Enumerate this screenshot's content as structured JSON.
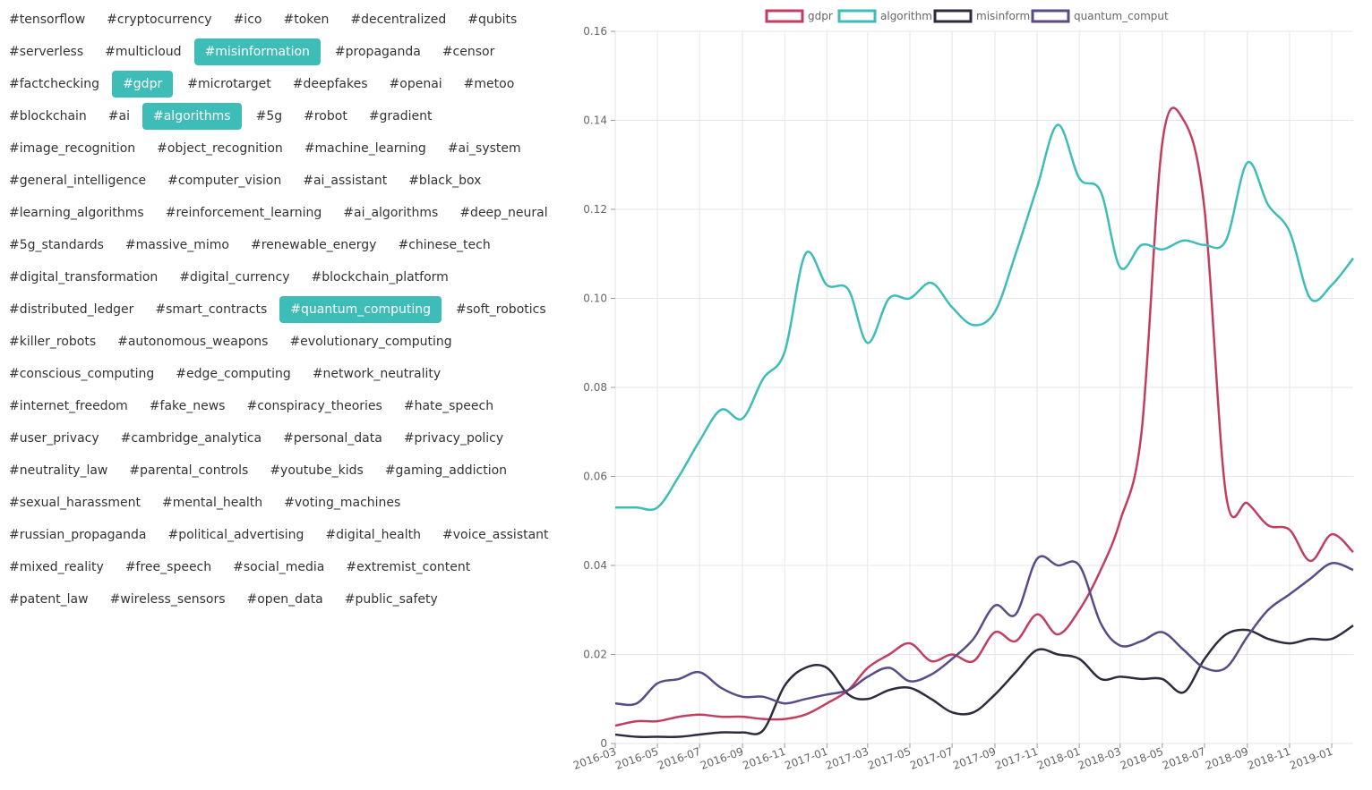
{
  "tags": [
    {
      "label": "#tensorflow",
      "active": false
    },
    {
      "label": "#cryptocurrency",
      "active": false
    },
    {
      "label": "#ico",
      "active": false
    },
    {
      "label": "#token",
      "active": false
    },
    {
      "label": "#decentralized",
      "active": false
    },
    {
      "label": "#qubits",
      "active": false
    },
    {
      "label": "#serverless",
      "active": false
    },
    {
      "label": "#multicloud",
      "active": false
    },
    {
      "label": "#misinformation",
      "active": true
    },
    {
      "label": "#propaganda",
      "active": false
    },
    {
      "label": "#censor",
      "active": false
    },
    {
      "label": "#factchecking",
      "active": false
    },
    {
      "label": "#gdpr",
      "active": true
    },
    {
      "label": "#microtarget",
      "active": false
    },
    {
      "label": "#deepfakes",
      "active": false
    },
    {
      "label": "#openai",
      "active": false
    },
    {
      "label": "#metoo",
      "active": false
    },
    {
      "label": "#blockchain",
      "active": false
    },
    {
      "label": "#ai",
      "active": false
    },
    {
      "label": "#algorithms",
      "active": true
    },
    {
      "label": "#5g",
      "active": false
    },
    {
      "label": "#robot",
      "active": false
    },
    {
      "label": "#gradient",
      "active": false
    },
    {
      "label": "#image_recognition",
      "active": false
    },
    {
      "label": "#object_recognition",
      "active": false
    },
    {
      "label": "#machine_learning",
      "active": false
    },
    {
      "label": "#ai_system",
      "active": false
    },
    {
      "label": "#general_intelligence",
      "active": false
    },
    {
      "label": "#computer_vision",
      "active": false
    },
    {
      "label": "#ai_assistant",
      "active": false
    },
    {
      "label": "#black_box",
      "active": false
    },
    {
      "label": "#learning_algorithms",
      "active": false
    },
    {
      "label": "#reinforcement_learning",
      "active": false
    },
    {
      "label": "#ai_algorithms",
      "active": false
    },
    {
      "label": "#deep_neural",
      "active": false
    },
    {
      "label": "#5g_standards",
      "active": false
    },
    {
      "label": "#massive_mimo",
      "active": false
    },
    {
      "label": "#renewable_energy",
      "active": false
    },
    {
      "label": "#chinese_tech",
      "active": false
    },
    {
      "label": "#digital_transformation",
      "active": false
    },
    {
      "label": "#digital_currency",
      "active": false
    },
    {
      "label": "#blockchain_platform",
      "active": false
    },
    {
      "label": "#distributed_ledger",
      "active": false
    },
    {
      "label": "#smart_contracts",
      "active": false
    },
    {
      "label": "#quantum_computing",
      "active": true
    },
    {
      "label": "#soft_robotics",
      "active": false
    },
    {
      "label": "#killer_robots",
      "active": false
    },
    {
      "label": "#autonomous_weapons",
      "active": false
    },
    {
      "label": "#evolutionary_computing",
      "active": false
    },
    {
      "label": "#conscious_computing",
      "active": false
    },
    {
      "label": "#edge_computing",
      "active": false
    },
    {
      "label": "#network_neutrality",
      "active": false
    },
    {
      "label": "#internet_freedom",
      "active": false
    },
    {
      "label": "#fake_news",
      "active": false
    },
    {
      "label": "#conspiracy_theories",
      "active": false
    },
    {
      "label": "#hate_speech",
      "active": false
    },
    {
      "label": "#user_privacy",
      "active": false
    },
    {
      "label": "#cambridge_analytica",
      "active": false
    },
    {
      "label": "#personal_data",
      "active": false
    },
    {
      "label": "#privacy_policy",
      "active": false
    },
    {
      "label": "#neutrality_law",
      "active": false
    },
    {
      "label": "#parental_controls",
      "active": false
    },
    {
      "label": "#youtube_kids",
      "active": false
    },
    {
      "label": "#gaming_addiction",
      "active": false
    },
    {
      "label": "#sexual_harassment",
      "active": false
    },
    {
      "label": "#mental_health",
      "active": false
    },
    {
      "label": "#voting_machines",
      "active": false
    },
    {
      "label": "#russian_propaganda",
      "active": false
    },
    {
      "label": "#political_advertising",
      "active": false
    },
    {
      "label": "#digital_health",
      "active": false
    },
    {
      "label": "#voice_assistant",
      "active": false
    },
    {
      "label": "#mixed_reality",
      "active": false
    },
    {
      "label": "#free_speech",
      "active": false
    },
    {
      "label": "#social_media",
      "active": false
    },
    {
      "label": "#extremist_content",
      "active": false
    },
    {
      "label": "#patent_law",
      "active": false
    },
    {
      "label": "#wireless_sensors",
      "active": false
    },
    {
      "label": "#open_data",
      "active": false
    },
    {
      "label": "#public_safety",
      "active": false
    }
  ],
  "colors": {
    "active_tag_bg": "#3ebdb8",
    "grid": "#e6e6e6",
    "axis_text": "#666666"
  },
  "chart_data": {
    "type": "line",
    "title": "",
    "xlabel": "",
    "ylabel": "",
    "legend_position": "top",
    "grid": true,
    "ylim": [
      0,
      0.16
    ],
    "y_ticks": [
      "0",
      "0.02",
      "0.04",
      "0.06",
      "0.08",
      "0.10",
      "0.12",
      "0.14",
      "0.16"
    ],
    "x_range": [
      "2016-03",
      "2019-02"
    ],
    "x_ticks": [
      "2016-03",
      "2016-05",
      "2016-07",
      "2016-09",
      "2016-11",
      "2017-01",
      "2017-03",
      "2017-05",
      "2017-07",
      "2017-09",
      "2017-11",
      "2018-01",
      "2018-03",
      "2018-05",
      "2018-07",
      "2018-09",
      "2018-11",
      "2019-01"
    ],
    "x": [
      "2016-03-01",
      "2016-04-01",
      "2016-05-01",
      "2016-06-01",
      "2016-07-01",
      "2016-08-01",
      "2016-09-01",
      "2016-10-01",
      "2016-11-01",
      "2016-12-01",
      "2017-01-01",
      "2017-02-01",
      "2017-03-01",
      "2017-04-01",
      "2017-05-01",
      "2017-06-01",
      "2017-07-01",
      "2017-08-01",
      "2017-09-01",
      "2017-10-01",
      "2017-11-01",
      "2017-12-01",
      "2018-01-01",
      "2018-02-01",
      "2018-03-01",
      "2018-04-01",
      "2018-05-01",
      "2018-06-01",
      "2018-07-01",
      "2018-08-01",
      "2018-09-01",
      "2018-10-01",
      "2018-11-01",
      "2018-12-01",
      "2019-01-01",
      "2019-02-01"
    ],
    "series": [
      {
        "name": "gdpr",
        "color": "#c23e61",
        "values": [
          0.004,
          0.005,
          0.005,
          0.006,
          0.0065,
          0.006,
          0.006,
          0.0055,
          0.0055,
          0.0065,
          0.009,
          0.012,
          0.017,
          0.02,
          0.0225,
          0.0185,
          0.02,
          0.0185,
          0.025,
          0.023,
          0.029,
          0.0245,
          0.03,
          0.039,
          0.05,
          0.07,
          0.135,
          0.14,
          0.12,
          0.056,
          0.054,
          0.049,
          0.048,
          0.041,
          0.047,
          0.043
        ]
      },
      {
        "name": "algorithm",
        "color": "#3ebdb8",
        "values": [
          0.053,
          0.053,
          0.053,
          0.06,
          0.068,
          0.075,
          0.073,
          0.082,
          0.088,
          0.11,
          0.103,
          0.102,
          0.09,
          0.1,
          0.1,
          0.1035,
          0.098,
          0.094,
          0.097,
          0.11,
          0.125,
          0.139,
          0.127,
          0.124,
          0.107,
          0.112,
          0.111,
          0.113,
          0.112,
          0.113,
          0.1305,
          0.121,
          0.115,
          0.1,
          0.103,
          0.109
        ]
      },
      {
        "name": "misinform",
        "color": "#2e2b3e",
        "values": [
          0.002,
          0.0015,
          0.0015,
          0.0015,
          0.002,
          0.0025,
          0.0025,
          0.003,
          0.013,
          0.017,
          0.017,
          0.011,
          0.01,
          0.012,
          0.0125,
          0.01,
          0.007,
          0.007,
          0.011,
          0.016,
          0.021,
          0.02,
          0.019,
          0.0145,
          0.015,
          0.0145,
          0.0145,
          0.0115,
          0.019,
          0.0245,
          0.0255,
          0.0235,
          0.0225,
          0.0235,
          0.0235,
          0.0265
        ]
      },
      {
        "name": "quantum_comput",
        "color": "#5a4b86",
        "values": [
          0.009,
          0.009,
          0.0135,
          0.0145,
          0.016,
          0.0125,
          0.0105,
          0.0105,
          0.009,
          0.01,
          0.011,
          0.012,
          0.015,
          0.017,
          0.014,
          0.0155,
          0.019,
          0.0235,
          0.031,
          0.029,
          0.0415,
          0.04,
          0.04,
          0.027,
          0.022,
          0.023,
          0.025,
          0.021,
          0.017,
          0.017,
          0.024,
          0.03,
          0.0335,
          0.037,
          0.0405,
          0.039
        ]
      }
    ]
  }
}
